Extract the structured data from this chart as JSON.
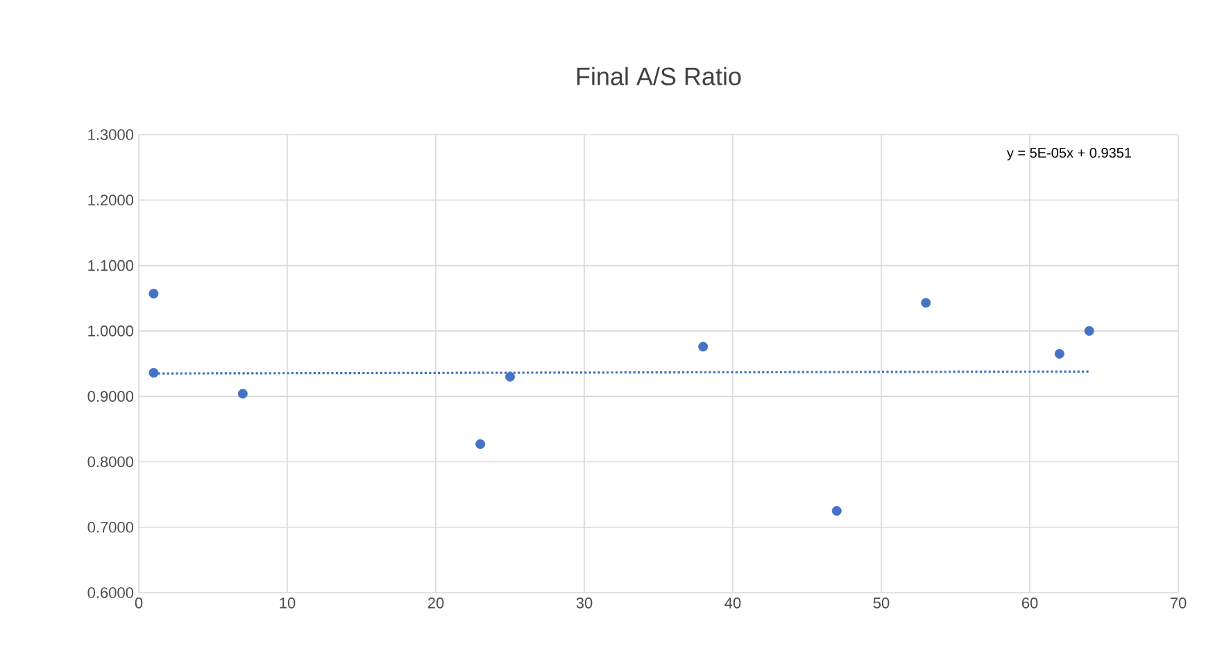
{
  "chart_data": {
    "type": "scatter",
    "title": "Final A/S Ratio",
    "annotations": [
      "y = 5E-05x + 0.9351"
    ],
    "grid": true,
    "xlim": [
      0,
      70
    ],
    "xticks": [
      0,
      10,
      20,
      30,
      40,
      50,
      60,
      70
    ],
    "ylim": [
      0.6,
      1.3
    ],
    "yticks": [
      {
        "value": 0.6,
        "label": "0.6000"
      },
      {
        "value": 0.7,
        "label": "0.7000"
      },
      {
        "value": 0.8,
        "label": "0.8000"
      },
      {
        "value": 0.9,
        "label": "0.9000"
      },
      {
        "value": 1.0,
        "label": "1.0000"
      },
      {
        "value": 1.1,
        "label": "1.1000"
      },
      {
        "value": 1.2,
        "label": "1.2000"
      },
      {
        "value": 1.3,
        "label": "1.3000"
      }
    ],
    "series": [
      {
        "color": "#4472c4",
        "marker": "circle",
        "x": [
          1,
          1,
          7,
          23,
          25,
          38,
          47,
          53,
          62,
          64
        ],
        "values": [
          1.057,
          0.936,
          0.904,
          0.827,
          0.93,
          0.976,
          0.725,
          1.043,
          0.965,
          1.0
        ]
      },
      {
        "type": "line",
        "color": "#4472c4",
        "marker": "none",
        "line_style": "dotted",
        "x": [
          1,
          64
        ],
        "values": [
          0.935,
          0.938
        ]
      }
    ]
  }
}
